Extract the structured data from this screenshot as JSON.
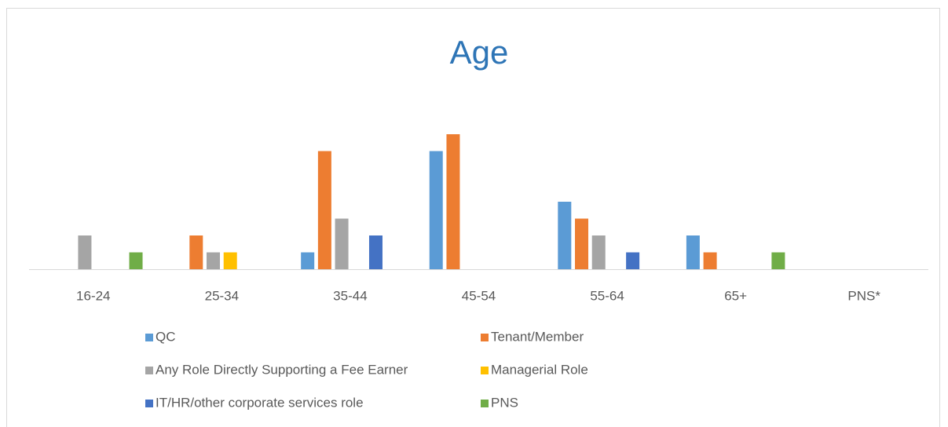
{
  "chart_data": {
    "type": "bar",
    "title": "Age",
    "categories": [
      "16-24",
      "25-34",
      "35-44",
      "45-54",
      "55-64",
      "65+",
      "PNS*"
    ],
    "series": [
      {
        "name": "QC",
        "color": "#5b9bd5",
        "values": [
          0,
          0,
          1,
          7,
          4,
          2,
          0
        ]
      },
      {
        "name": "Tenant/Member",
        "color": "#ed7d31",
        "values": [
          0,
          2,
          7,
          8,
          3,
          1,
          0
        ]
      },
      {
        "name": "Any Role Directly Supporting a Fee Earner",
        "color": "#a5a5a5",
        "values": [
          2,
          1,
          3,
          0,
          2,
          0,
          0
        ]
      },
      {
        "name": "Managerial Role",
        "color": "#ffc000",
        "values": [
          0,
          1,
          0,
          0,
          0,
          0,
          0
        ]
      },
      {
        "name": "IT/HR/other corporate services role",
        "color": "#4472c4",
        "values": [
          0,
          0,
          2,
          0,
          1,
          0,
          0
        ]
      },
      {
        "name": "PNS",
        "color": "#70ad47",
        "values": [
          1,
          0,
          0,
          0,
          0,
          1,
          0
        ]
      }
    ]
  }
}
